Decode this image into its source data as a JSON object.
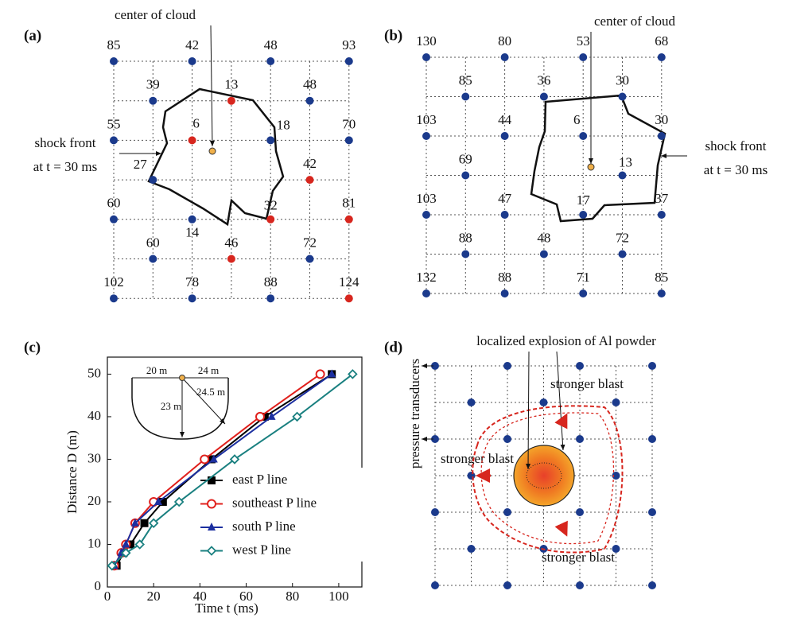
{
  "panel_a": {
    "label": "(a)",
    "center_label": "center of cloud",
    "shock_label": "shock front",
    "time_label": "at t = 30 ms",
    "nodes": [
      {
        "label": 85,
        "color": "#1b3a8c"
      },
      {
        "label": 42,
        "color": "#1b3a8c"
      },
      {
        "label": 48,
        "color": "#1b3a8c"
      },
      {
        "label": 93,
        "color": "#1b3a8c"
      },
      {
        "label": 39,
        "color": "#1b3a8c"
      },
      {
        "label": 13,
        "color": "#d7261e"
      },
      {
        "label": 48,
        "color": "#1b3a8c"
      },
      {
        "label": 55,
        "color": "#1b3a8c"
      },
      {
        "label": 6,
        "color": "#d7261e"
      },
      {
        "label": 18,
        "color": "#1b3a8c"
      },
      {
        "label": 70,
        "color": "#1b3a8c"
      },
      {
        "label": 27,
        "color": "#1b3a8c"
      },
      {
        "label": 42,
        "color": "#d7261e"
      },
      {
        "label": 60,
        "color": "#1b3a8c"
      },
      {
        "label": 14,
        "color": "#1b3a8c"
      },
      {
        "label": 32,
        "color": "#d7261e"
      },
      {
        "label": 81,
        "color": "#d7261e"
      },
      {
        "label": 60,
        "color": "#1b3a8c"
      },
      {
        "label": 46,
        "color": "#d7261e"
      },
      {
        "label": 72,
        "color": "#1b3a8c"
      },
      {
        "label": 102,
        "color": "#1b3a8c"
      },
      {
        "label": 78,
        "color": "#1b3a8c"
      },
      {
        "label": 88,
        "color": "#1b3a8c"
      },
      {
        "label": 124,
        "color": "#d7261e"
      }
    ]
  },
  "panel_b": {
    "label": "(b)",
    "center_label": "center of cloud",
    "shock_label": "shock front",
    "time_label": "at t = 30 ms",
    "nodes": [
      {
        "label": 130,
        "color": "#1b3a8c"
      },
      {
        "label": 80,
        "color": "#1b3a8c"
      },
      {
        "label": 53,
        "color": "#1b3a8c"
      },
      {
        "label": 68,
        "color": "#1b3a8c"
      },
      {
        "label": 85,
        "color": "#1b3a8c"
      },
      {
        "label": 36,
        "color": "#1b3a8c"
      },
      {
        "label": 30,
        "color": "#1b3a8c"
      },
      {
        "label": 103,
        "color": "#1b3a8c"
      },
      {
        "label": 44,
        "color": "#1b3a8c"
      },
      {
        "label": 6,
        "color": "#1b3a8c"
      },
      {
        "label": 30,
        "color": "#1b3a8c"
      },
      {
        "label": 69,
        "color": "#1b3a8c"
      },
      {
        "label": 13,
        "color": "#1b3a8c"
      },
      {
        "label": 103,
        "color": "#1b3a8c"
      },
      {
        "label": 47,
        "color": "#1b3a8c"
      },
      {
        "label": 17,
        "color": "#1b3a8c"
      },
      {
        "label": 37,
        "color": "#1b3a8c"
      },
      {
        "label": 88,
        "color": "#1b3a8c"
      },
      {
        "label": 48,
        "color": "#1b3a8c"
      },
      {
        "label": 72,
        "color": "#1b3a8c"
      },
      {
        "label": 132,
        "color": "#1b3a8c"
      },
      {
        "label": 88,
        "color": "#1b3a8c"
      },
      {
        "label": 71,
        "color": "#1b3a8c"
      },
      {
        "label": 85,
        "color": "#1b3a8c"
      }
    ]
  },
  "chart_data": {
    "type": "line",
    "label": "(c)",
    "xlabel": "Time t (ms)",
    "ylabel": "Distance D (m)",
    "xlim": [
      0,
      110
    ],
    "ylim": [
      0,
      54
    ],
    "xticks": [
      0,
      20,
      40,
      60,
      80,
      100
    ],
    "yticks": [
      0,
      10,
      20,
      30,
      40,
      50
    ],
    "legend": "right",
    "inset_labels": [
      "20 m",
      "24 m",
      "23 m",
      "24.5 m"
    ],
    "series": [
      {
        "name": "east P line",
        "color": "#000000",
        "marker": "square",
        "x": [
          4,
          7,
          10,
          16,
          24,
          45,
          68,
          97
        ],
        "values": [
          5,
          8,
          10,
          15,
          20,
          30,
          40,
          50
        ]
      },
      {
        "name": "southeast P line",
        "color": "#e0201c",
        "marker": "circle",
        "x": [
          3,
          6,
          8,
          12,
          20,
          42,
          66,
          92
        ],
        "values": [
          5,
          8,
          10,
          15,
          20,
          30,
          40,
          50
        ]
      },
      {
        "name": "south P line",
        "color": "#1c2fa0",
        "marker": "triangle",
        "x": [
          3,
          6,
          8,
          12,
          22,
          46,
          71,
          97
        ],
        "values": [
          5,
          8,
          10,
          15,
          20,
          30,
          40,
          50
        ]
      },
      {
        "name": "west P line",
        "color": "#1a8080",
        "marker": "diamond",
        "x": [
          2,
          8,
          14,
          20,
          31,
          55,
          82,
          106
        ],
        "values": [
          5,
          8,
          10,
          15,
          20,
          30,
          40,
          50
        ]
      }
    ]
  },
  "panel_d": {
    "label": "(d)",
    "title": "localized explosion of Al powder",
    "axis_note": "pressure transducers",
    "blast_labels": [
      "stronger blast",
      "stronger blast",
      "stronger blast"
    ]
  }
}
